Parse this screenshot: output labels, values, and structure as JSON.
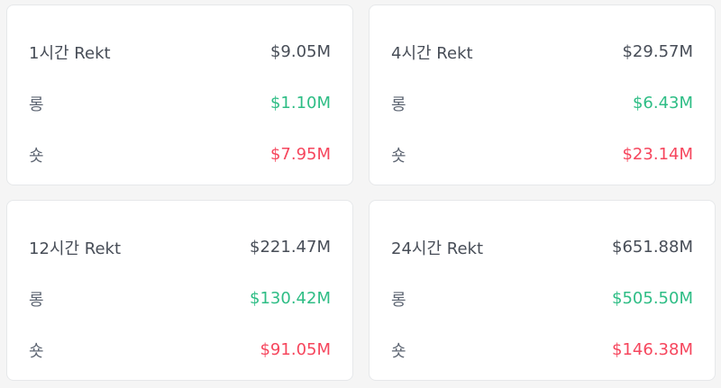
{
  "cards": [
    {
      "title": "1시간 Rekt",
      "total": "$9.05M",
      "long_label": "롱",
      "long": "$1.10M",
      "short_label": "숏",
      "short": "$7.95M"
    },
    {
      "title": "4시간 Rekt",
      "total": "$29.57M",
      "long_label": "롱",
      "long": "$6.43M",
      "short_label": "숏",
      "short": "$23.14M"
    },
    {
      "title": "12시간 Rekt",
      "total": "$221.47M",
      "long_label": "롱",
      "long": "$130.42M",
      "short_label": "숏",
      "short": "$91.05M"
    },
    {
      "title": "24시간 Rekt",
      "total": "$651.88M",
      "long_label": "롱",
      "long": "$505.50M",
      "short_label": "숏",
      "short": "$146.38M"
    }
  ],
  "colors": {
    "long": "#2ebd85",
    "short": "#f6465d",
    "text": "#474d57"
  }
}
